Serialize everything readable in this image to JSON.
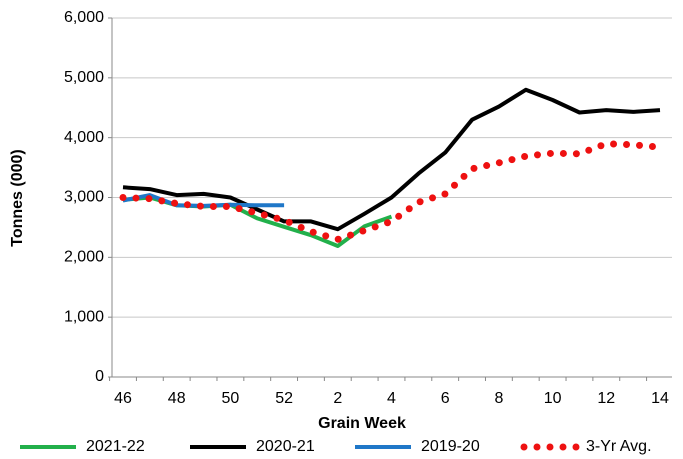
{
  "chart_data": {
    "type": "line",
    "x_label": "Grain Week",
    "y_label": "Tonnes (000)",
    "categories": [
      "46",
      null,
      "48",
      null,
      "50",
      null,
      "52",
      null,
      "2",
      null,
      "4",
      null,
      "6",
      null,
      "8",
      null,
      "10",
      null,
      "12",
      null,
      "14"
    ],
    "series": [
      {
        "name": "2021-22",
        "color": "#22b04b",
        "style": "solid",
        "values": [
          2960,
          3000,
          2870,
          2850,
          2880,
          2650,
          2510,
          2370,
          2190,
          2520,
          2680,
          null,
          null,
          null,
          null,
          null,
          null,
          null,
          null,
          null,
          null
        ]
      },
      {
        "name": "2020-21",
        "color": "#000000",
        "style": "solid",
        "values": [
          3170,
          3140,
          3040,
          3060,
          3000,
          2800,
          2600,
          2600,
          2470,
          2730,
          3000,
          3400,
          3750,
          4300,
          4520,
          4800,
          4630,
          4420,
          4460,
          4430,
          4460
        ]
      },
      {
        "name": "2019-20",
        "color": "#1f77c8",
        "style": "solid",
        "values": [
          2950,
          3040,
          2870,
          2860,
          2880,
          2870,
          2870,
          null,
          null,
          null,
          null,
          null,
          null,
          null,
          null,
          null,
          null,
          null,
          null,
          null,
          null
        ]
      },
      {
        "name": "3-Yr Avg.",
        "color": "#ee1111",
        "style": "dotted",
        "values": [
          3000,
          2980,
          2900,
          2850,
          2850,
          2740,
          2620,
          2430,
          2300,
          2450,
          2600,
          2920,
          3060,
          3480,
          3580,
          3690,
          3740,
          3730,
          3900,
          3880,
          3840
        ]
      }
    ],
    "ylim": [
      0,
      6000
    ],
    "yticks": [
      0,
      {
        "value": 1000,
        "label": "1,000"
      },
      {
        "value": 2000,
        "label": "2,000"
      },
      {
        "value": 3000,
        "label": "3,000"
      },
      {
        "value": 4000,
        "label": "4,000"
      },
      {
        "value": 5000,
        "label": "5,000"
      },
      {
        "value": 6000,
        "label": "6,000"
      }
    ],
    "grid": true,
    "legend": "bottom"
  }
}
